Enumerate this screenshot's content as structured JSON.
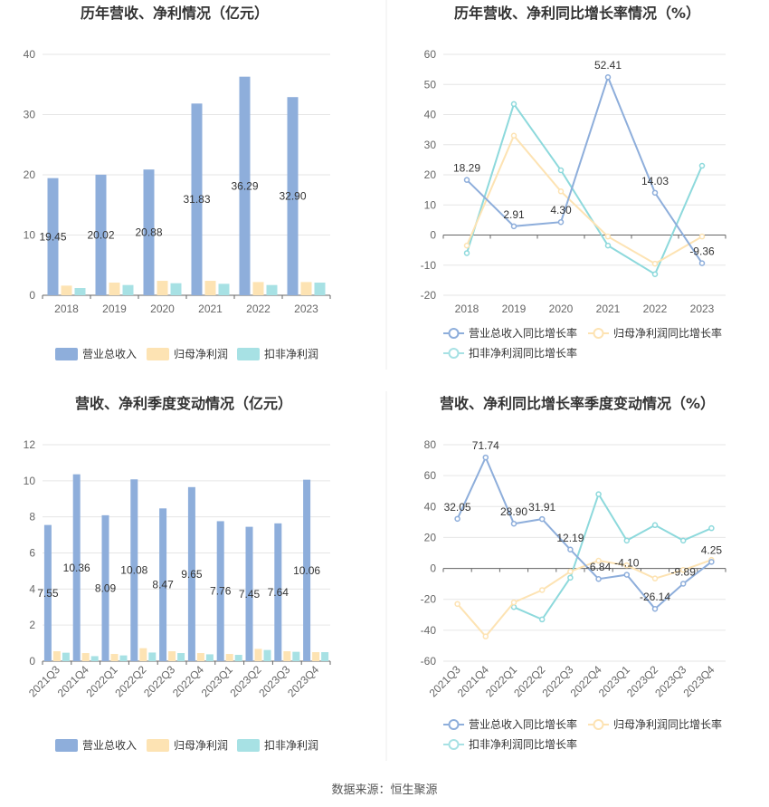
{
  "source_note": "数据来源：恒生聚源",
  "colors": {
    "revenue": "#8eaedb",
    "net_profit": "#fde3b3",
    "deducted_net_profit": "#a7e1e4",
    "revenue_line": "#8eaedb",
    "net_profit_line": "#fde3b3",
    "deducted_line": "#8dd9dc",
    "grid": "#e6e6e6",
    "axis": "#666666"
  },
  "chart_data": [
    {
      "id": "annual_bar",
      "type": "bar",
      "title": "历年营收、净利情况（亿元）",
      "categories": [
        "2018",
        "2019",
        "2020",
        "2021",
        "2022",
        "2023"
      ],
      "ylim": [
        0,
        40
      ],
      "yticks": [
        0,
        10,
        20,
        30,
        40
      ],
      "series": [
        {
          "name": "营业总收入",
          "values": [
            19.45,
            20.02,
            20.88,
            31.83,
            36.29,
            32.9
          ],
          "labels": [
            "19.45",
            "20.02",
            "20.88",
            "31.83",
            "36.29",
            "32.90"
          ]
        },
        {
          "name": "归母净利润",
          "values": [
            1.6,
            2.1,
            2.4,
            2.4,
            2.2,
            2.2
          ]
        },
        {
          "name": "扣非净利润",
          "values": [
            1.2,
            1.7,
            2.0,
            1.9,
            1.7,
            2.1
          ]
        }
      ]
    },
    {
      "id": "annual_line",
      "type": "line",
      "title": "历年营收、净利同比增长率情况（%）",
      "categories": [
        "2018",
        "2019",
        "2020",
        "2021",
        "2022",
        "2023"
      ],
      "ylim": [
        -20,
        60
      ],
      "yticks": [
        -20,
        -10,
        0,
        10,
        20,
        30,
        40,
        50,
        60
      ],
      "series": [
        {
          "name": "营业总收入同比增长率",
          "values": [
            18.29,
            2.91,
            4.3,
            52.41,
            14.03,
            -9.36
          ],
          "labels": [
            "18.29",
            "2.91",
            "4.30",
            "52.41",
            "14.03",
            "-9.36"
          ]
        },
        {
          "name": "归母净利润同比增长率",
          "values": [
            -3.5,
            33.0,
            14.5,
            -0.5,
            -9.5,
            -0.5
          ]
        },
        {
          "name": "扣非净利润同比增长率",
          "values": [
            -6.0,
            43.5,
            21.5,
            -3.5,
            -13.0,
            23.0
          ]
        }
      ]
    },
    {
      "id": "quarterly_bar",
      "type": "bar",
      "title": "营收、净利季度变动情况（亿元）",
      "categories": [
        "2021Q3",
        "2021Q4",
        "2022Q1",
        "2022Q2",
        "2022Q3",
        "2022Q4",
        "2023Q1",
        "2023Q2",
        "2023Q3",
        "2023Q4"
      ],
      "ylim": [
        0,
        12
      ],
      "yticks": [
        0,
        2,
        4,
        6,
        8,
        10,
        12
      ],
      "series": [
        {
          "name": "营业总收入",
          "values": [
            7.55,
            10.36,
            8.09,
            10.08,
            8.47,
            9.65,
            7.76,
            7.45,
            7.64,
            10.06
          ],
          "labels": [
            "7.55",
            "10.36",
            "8.09",
            "10.08",
            "8.47",
            "9.65",
            "7.76",
            "7.45",
            "7.64",
            "10.06"
          ]
        },
        {
          "name": "归母净利润",
          "values": [
            0.55,
            0.45,
            0.4,
            0.72,
            0.55,
            0.45,
            0.4,
            0.68,
            0.55,
            0.5
          ]
        },
        {
          "name": "扣非净利润",
          "values": [
            0.47,
            0.28,
            0.32,
            0.48,
            0.45,
            0.38,
            0.35,
            0.62,
            0.52,
            0.5
          ]
        }
      ]
    },
    {
      "id": "quarterly_line",
      "type": "line",
      "title": "营收、净利同比增长率季度变动情况（%）",
      "categories": [
        "2021Q3",
        "2021Q4",
        "2022Q1",
        "2022Q2",
        "2022Q3",
        "2022Q4",
        "2023Q1",
        "2023Q2",
        "2023Q3",
        "2023Q4"
      ],
      "ylim": [
        -60,
        80
      ],
      "yticks": [
        -60,
        -40,
        -20,
        0,
        20,
        40,
        60,
        80
      ],
      "series": [
        {
          "name": "营业总收入同比增长率",
          "values": [
            32.05,
            71.74,
            28.9,
            31.91,
            12.19,
            -6.84,
            -4.1,
            -26.14,
            -9.89,
            4.25
          ],
          "labels": [
            "32.05",
            "71.74",
            "28.90",
            "31.91",
            "12.19",
            "-6.84",
            "-4.10",
            "-26.14",
            "-9.89",
            "4.25"
          ]
        },
        {
          "name": "归母净利润同比增长率",
          "values": [
            -23.0,
            -44.0,
            -22.0,
            -14.0,
            -2.0,
            5.0,
            2.0,
            -6.5,
            -1.0,
            5.5
          ]
        },
        {
          "name": "扣非净利润同比增长率",
          "values": [
            null,
            null,
            -25.0,
            -33.0,
            -6.0,
            48.0,
            18.0,
            28.0,
            18.0,
            26.0
          ]
        }
      ]
    }
  ]
}
